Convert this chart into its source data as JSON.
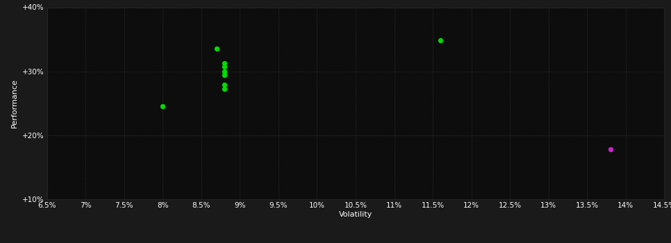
{
  "background_color": "#1a1a1a",
  "plot_bg_color": "#0d0d0d",
  "grid_color": "#2a2a2a",
  "text_color": "#ffffff",
  "xlabel": "Volatility",
  "ylabel": "Performance",
  "xlim": [
    0.065,
    0.145
  ],
  "ylim": [
    0.1,
    0.4
  ],
  "xticks": [
    0.065,
    0.07,
    0.075,
    0.08,
    0.085,
    0.09,
    0.095,
    0.1,
    0.105,
    0.11,
    0.115,
    0.12,
    0.125,
    0.13,
    0.135,
    0.14,
    0.145
  ],
  "xtick_labels": [
    "6.5%",
    "7%",
    "7.5%",
    "8%",
    "8.5%",
    "9%",
    "9.5%",
    "10%",
    "10.5%",
    "11%",
    "11.5%",
    "12%",
    "12.5%",
    "13%",
    "13.5%",
    "14%",
    "14.5%"
  ],
  "yticks": [
    0.1,
    0.2,
    0.3,
    0.4
  ],
  "ytick_labels": [
    "+10%",
    "+20%",
    "+30%",
    "+40%"
  ],
  "green_points": [
    [
      0.087,
      0.335
    ],
    [
      0.088,
      0.313
    ],
    [
      0.088,
      0.307
    ],
    [
      0.088,
      0.3
    ],
    [
      0.088,
      0.294
    ],
    [
      0.088,
      0.279
    ],
    [
      0.088,
      0.272
    ],
    [
      0.08,
      0.245
    ],
    [
      0.116,
      0.348
    ]
  ],
  "magenta_points": [
    [
      0.138,
      0.178
    ]
  ],
  "green_color": "#00dd00",
  "magenta_color": "#cc22cc",
  "marker_size": 28
}
